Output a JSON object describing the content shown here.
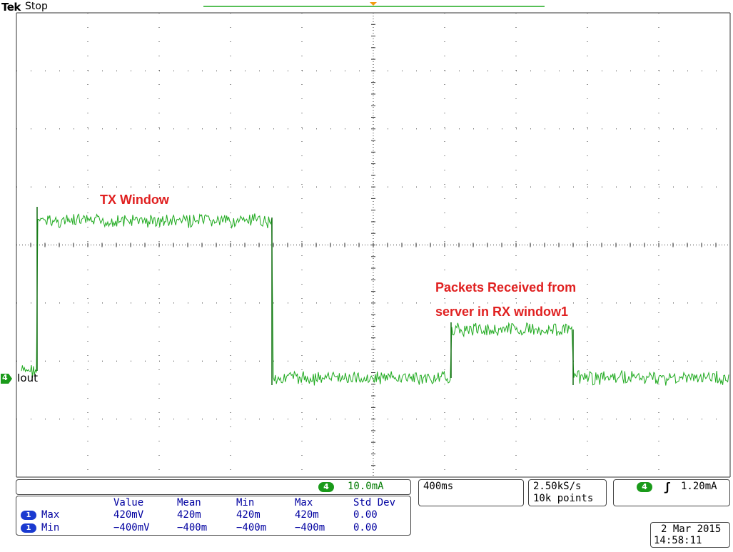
{
  "header": {
    "brand": "Tek",
    "status": "Stop"
  },
  "annotations": {
    "tx_window": "TX Window",
    "packets_line1": "Packets Received from",
    "packets_line2": "server in RX window1"
  },
  "channel": {
    "number": "4",
    "label": "Iout",
    "color": "#1a9a1a"
  },
  "channel_scale": {
    "channel": "4",
    "value": "10.0mA"
  },
  "timebase": {
    "value": "400ms"
  },
  "acquisition": {
    "rate": "2.50kS/s",
    "points": "10k points"
  },
  "trigger": {
    "channel": "4",
    "slope_icon": "rising-edge-icon",
    "symbol": "ʃ",
    "level": "1.20mA"
  },
  "measurements": {
    "headers": [
      "Value",
      "Mean",
      "Min",
      "Max",
      "Std Dev"
    ],
    "rows": [
      {
        "source": "1",
        "name": "Max",
        "value": "420mV",
        "mean": "420m",
        "min": "420m",
        "max": "420m",
        "std": "0.00"
      },
      {
        "source": "1",
        "name": "Min",
        "value": "−400mV",
        "mean": "−400m",
        "min": "−400m",
        "max": "−400m",
        "std": "0.00"
      }
    ]
  },
  "datetime": {
    "date": "2 Mar 2015",
    "time": "14:58:11"
  },
  "colors": {
    "trace": "#1faa1f",
    "trace_dark": "#0e6a0e",
    "annotation": "#e02020",
    "meas_text": "#0000a0",
    "grid": "#333333"
  }
}
